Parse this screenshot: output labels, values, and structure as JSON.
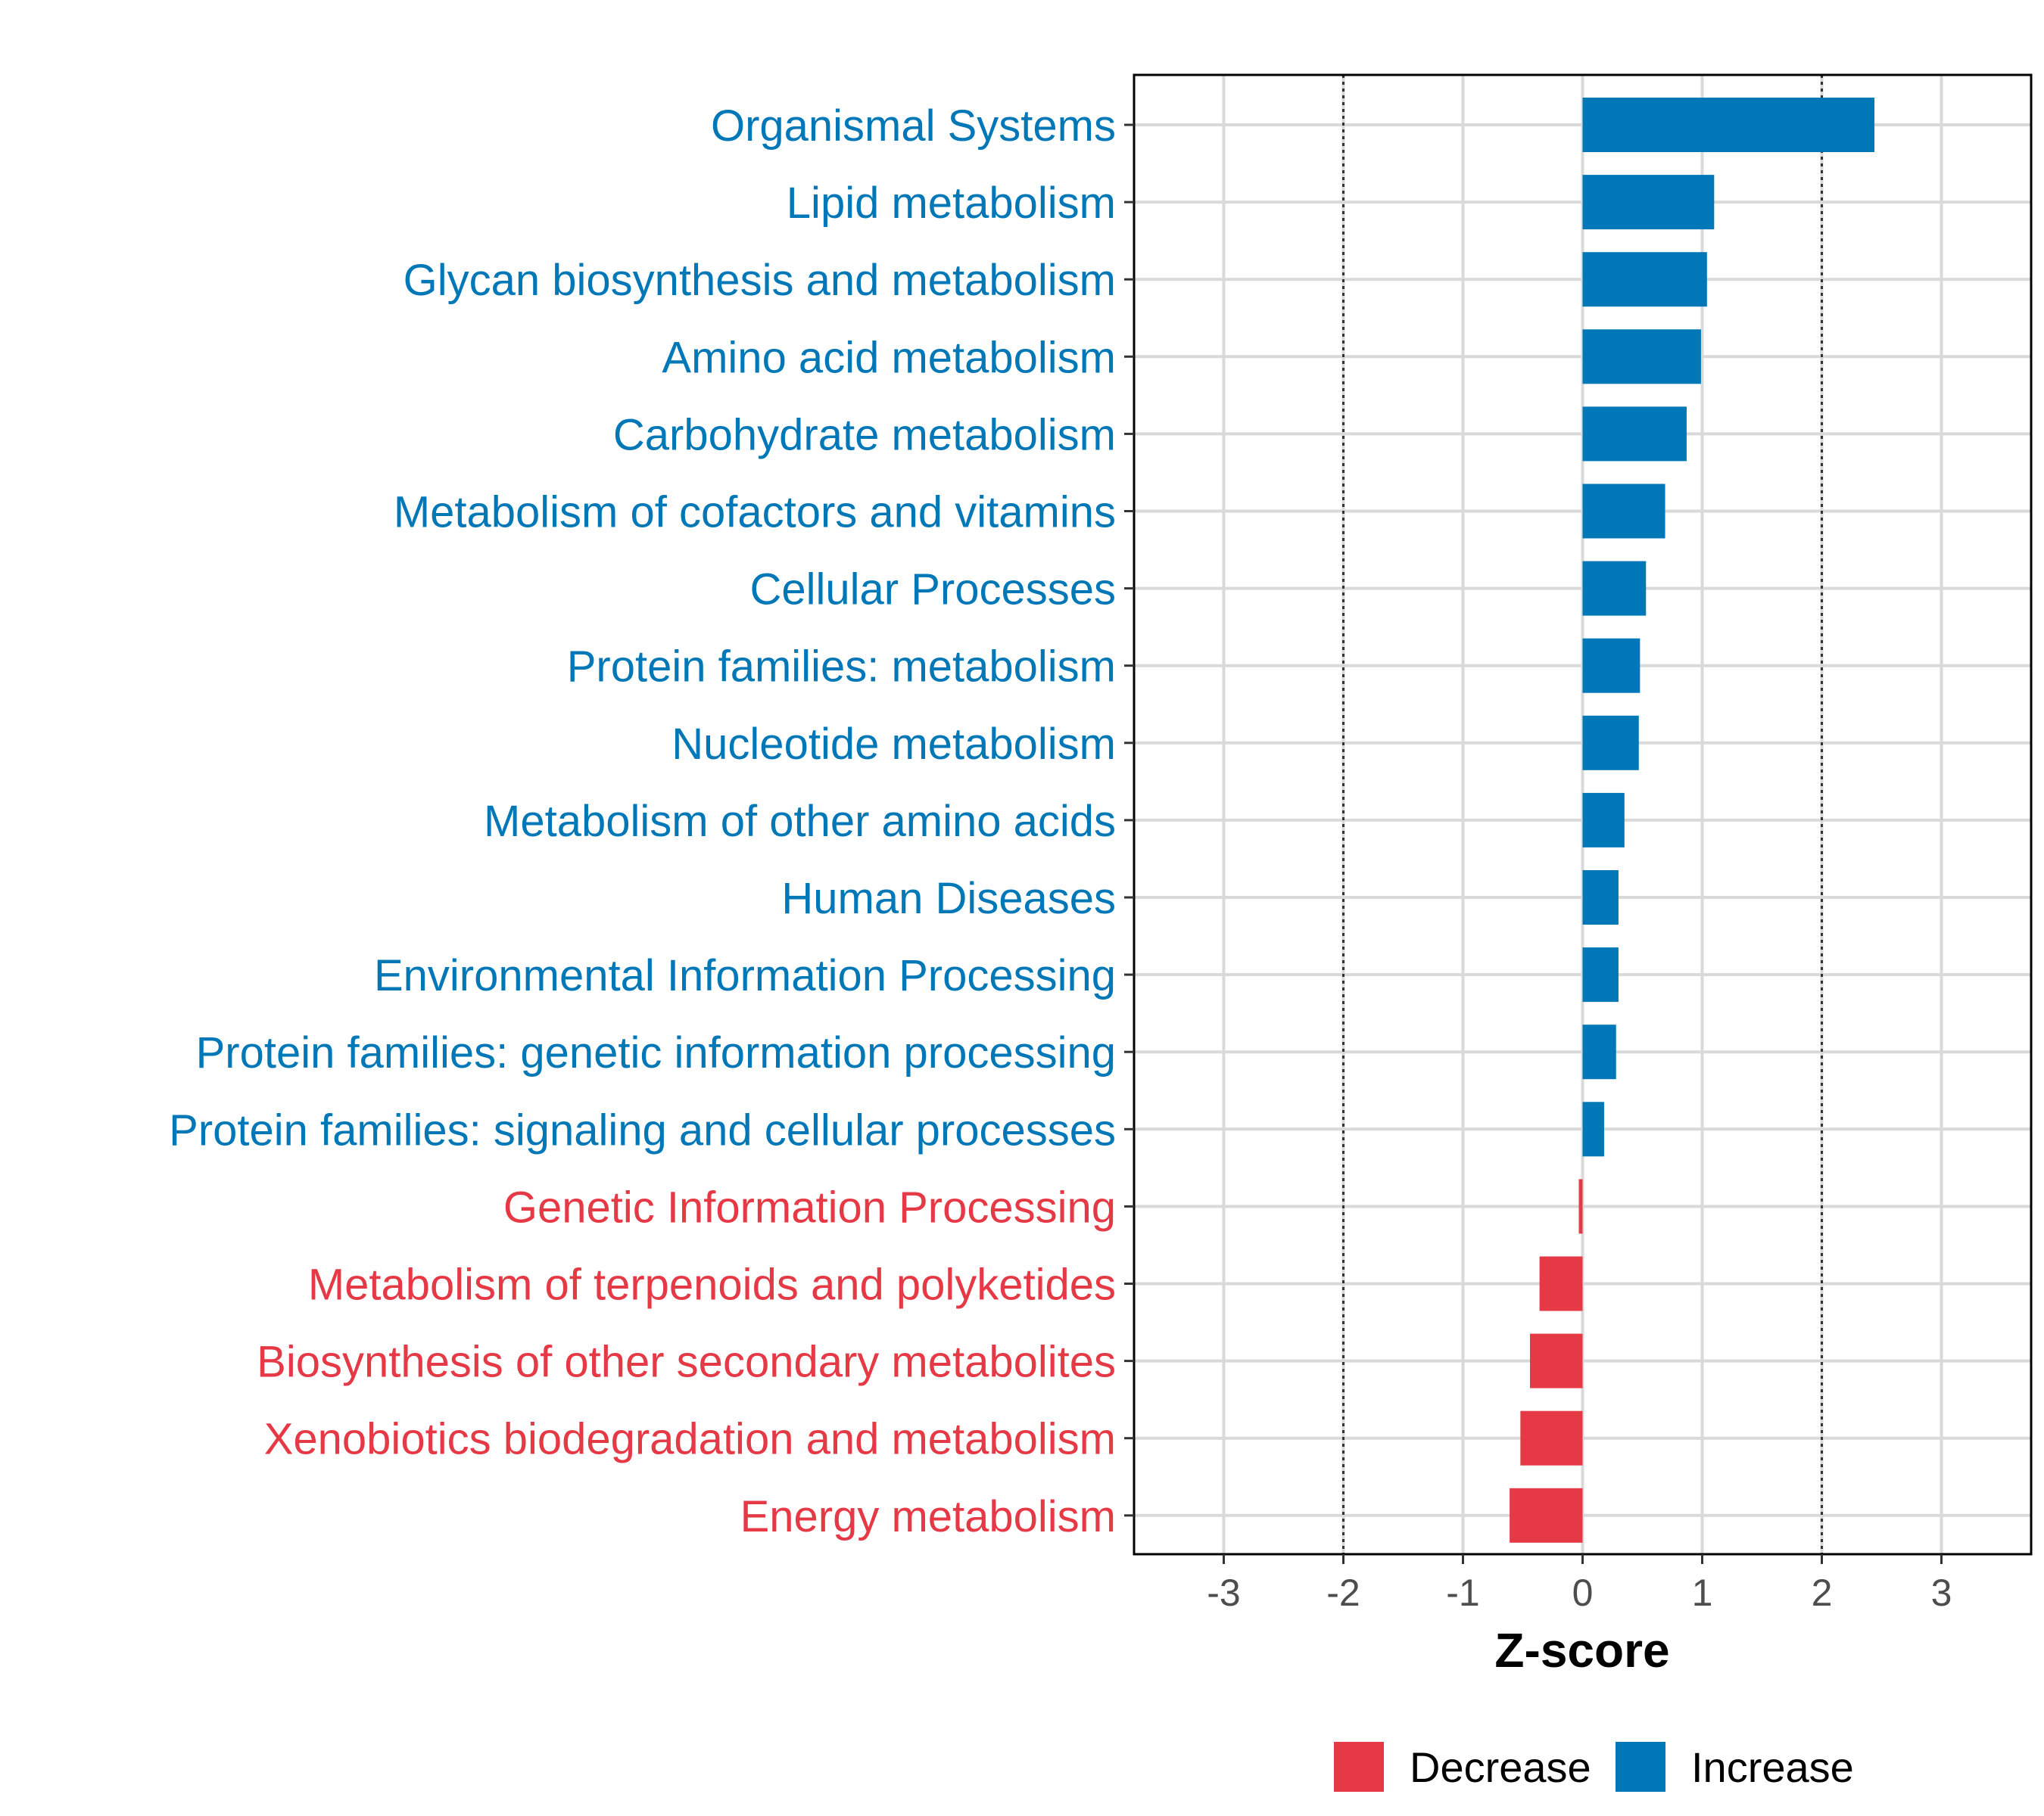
{
  "chart_data": {
    "type": "bar",
    "orientation": "horizontal",
    "categories": [
      "Organismal Systems",
      "Lipid metabolism",
      "Glycan biosynthesis and metabolism",
      "Amino acid metabolism",
      "Carbohydrate metabolism",
      "Metabolism of cofactors and vitamins",
      "Cellular Processes",
      "Protein families: metabolism",
      "Nucleotide metabolism",
      "Metabolism of other amino acids",
      "Human Diseases",
      "Environmental Information Processing",
      "Protein families: genetic information processing",
      "Protein families: signaling and cellular processes",
      "Genetic Information Processing",
      "Metabolism of terpenoids and polyketides",
      "Biosynthesis of other secondary metabolites",
      "Xenobiotics biodegradation and metabolism",
      "Energy metabolism"
    ],
    "values": [
      2.44,
      1.1,
      1.04,
      0.99,
      0.87,
      0.69,
      0.53,
      0.48,
      0.47,
      0.35,
      0.3,
      0.3,
      0.28,
      0.18,
      -0.03,
      -0.36,
      -0.44,
      -0.52,
      -0.61
    ],
    "groups": [
      "Increase",
      "Increase",
      "Increase",
      "Increase",
      "Increase",
      "Increase",
      "Increase",
      "Increase",
      "Increase",
      "Increase",
      "Increase",
      "Increase",
      "Increase",
      "Increase",
      "Decrease",
      "Decrease",
      "Decrease",
      "Decrease",
      "Decrease"
    ],
    "colors": {
      "Decrease": "#E63946",
      "Increase": "#0077B6"
    },
    "xlabel": "Z-score",
    "ylabel": "",
    "xlim": [
      -3.75,
      3.75
    ],
    "xticks": [
      -3,
      -2,
      -1,
      0,
      1,
      2,
      3
    ],
    "xtick_labels": [
      "-3",
      "-2",
      "-1",
      "0",
      "1",
      "2",
      "3"
    ],
    "reference_lines": [
      -2,
      2
    ],
    "grid": true,
    "legend": {
      "position": "bottom",
      "entries": [
        "Decrease",
        "Increase"
      ]
    }
  }
}
